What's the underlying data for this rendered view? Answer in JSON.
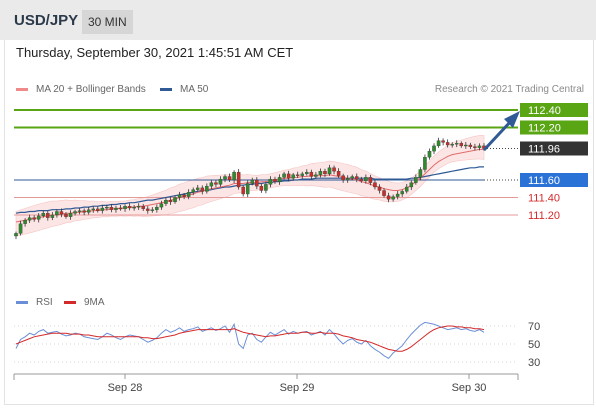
{
  "header": {
    "symbol": "USD/JPY",
    "timeframe": "30 MIN"
  },
  "date_text": "Thursday, September 30, 2021 1:45:51 AM CET",
  "legend": {
    "ma20_label": "MA 20 + Bollinger Bands",
    "ma50_label": "MA 50",
    "credit": "Research © 2021 Trading Central"
  },
  "rsi_legend": {
    "rsi_label": "RSI",
    "ma_label": "9MA"
  },
  "colors": {
    "resistance": "#5aa514",
    "support": "#d42a2a",
    "ma50": "#2f5a96",
    "ma20": "#e26b6b",
    "band_fill": "#fbdcdc",
    "rsi": "#6b8fd6",
    "current": "#333333",
    "arrow": "#2f5a96"
  },
  "chart_data": [
    {
      "type": "candlestick",
      "title": "USD/JPY 30 MIN",
      "x_labels": [
        "Sep 28",
        "Sep 29",
        "Sep 30"
      ],
      "ylim": [
        110.95,
        112.55
      ],
      "levels": [
        {
          "label": "112.40",
          "value": 112.4,
          "kind": "resistance"
        },
        {
          "label": "112.20",
          "value": 112.2,
          "kind": "resistance"
        },
        {
          "label": "111.96",
          "value": 111.96,
          "kind": "current"
        },
        {
          "label": "111.60",
          "value": 111.6,
          "kind": "pivot"
        },
        {
          "label": "111.40",
          "value": 111.4,
          "kind": "support"
        },
        {
          "label": "111.20",
          "value": 111.2,
          "kind": "support"
        }
      ],
      "close_series": [
        110.99,
        111.1,
        111.14,
        111.17,
        111.15,
        111.19,
        111.22,
        111.17,
        111.2,
        111.24,
        111.21,
        111.18,
        111.22,
        111.24,
        111.25,
        111.23,
        111.26,
        111.27,
        111.25,
        111.28,
        111.29,
        111.26,
        111.28,
        111.27,
        111.3,
        111.28,
        111.29,
        111.3,
        111.27,
        111.25,
        111.26,
        111.29,
        111.33,
        111.37,
        111.35,
        111.4,
        111.43,
        111.41,
        111.46,
        111.49,
        111.51,
        111.47,
        111.53,
        111.57,
        111.55,
        111.61,
        111.64,
        111.6,
        111.69,
        111.52,
        111.44,
        111.56,
        111.6,
        111.53,
        111.48,
        111.55,
        111.61,
        111.58,
        111.63,
        111.67,
        111.62,
        111.66,
        111.65,
        111.67,
        111.69,
        111.64,
        111.66,
        111.7,
        111.67,
        111.74,
        111.7,
        111.65,
        111.6,
        111.62,
        111.64,
        111.61,
        111.59,
        111.63,
        111.57,
        111.52,
        111.48,
        111.42,
        111.38,
        111.41,
        111.44,
        111.47,
        111.52,
        111.57,
        111.63,
        111.72,
        111.86,
        111.93,
        111.99,
        112.05,
        112.03,
        112.0,
        112.01,
        112.02,
        111.99,
        112.0,
        111.98,
        111.97,
        111.99,
        111.96
      ],
      "ma20_series": [
        111.12,
        111.13,
        111.14,
        111.15,
        111.16,
        111.17,
        111.18,
        111.19,
        111.2,
        111.2,
        111.21,
        111.22,
        111.22,
        111.23,
        111.23,
        111.24,
        111.24,
        111.25,
        111.25,
        111.26,
        111.26,
        111.27,
        111.27,
        111.28,
        111.28,
        111.29,
        111.29,
        111.3,
        111.3,
        111.31,
        111.32,
        111.33,
        111.34,
        111.35,
        111.37,
        111.38,
        111.4,
        111.41,
        111.43,
        111.44,
        111.46,
        111.47,
        111.49,
        111.5,
        111.51,
        111.52,
        111.53,
        111.54,
        111.56,
        111.56,
        111.56,
        111.57,
        111.57,
        111.57,
        111.58,
        111.58,
        111.59,
        111.6,
        111.61,
        111.62,
        111.62,
        111.63,
        111.63,
        111.64,
        111.64,
        111.65,
        111.65,
        111.65,
        111.65,
        111.66,
        111.65,
        111.64,
        111.63,
        111.62,
        111.61,
        111.6,
        111.58,
        111.57,
        111.55,
        111.53,
        111.52,
        111.5,
        111.49,
        111.48,
        111.48,
        111.49,
        111.51,
        111.54,
        111.58,
        111.62,
        111.67,
        111.72,
        111.77,
        111.81,
        111.84,
        111.87,
        111.89,
        111.9,
        111.91,
        111.92,
        111.93,
        111.94,
        111.95,
        111.95
      ],
      "ma50_series": [
        111.22,
        111.23,
        111.23,
        111.24,
        111.24,
        111.25,
        111.25,
        111.25,
        111.26,
        111.26,
        111.26,
        111.27,
        111.27,
        111.28,
        111.28,
        111.29,
        111.29,
        111.3,
        111.3,
        111.31,
        111.31,
        111.32,
        111.32,
        111.33,
        111.33,
        111.34,
        111.34,
        111.35,
        111.36,
        111.37,
        111.37,
        111.38,
        111.39,
        111.4,
        111.41,
        111.42,
        111.43,
        111.44,
        111.45,
        111.46,
        111.47,
        111.48,
        111.48,
        111.49,
        111.5,
        111.51,
        111.52,
        111.52,
        111.53,
        111.54,
        111.54,
        111.55,
        111.55,
        111.56,
        111.56,
        111.57,
        111.57,
        111.58,
        111.58,
        111.59,
        111.59,
        111.6,
        111.6,
        111.61,
        111.61,
        111.61,
        111.62,
        111.62,
        111.62,
        111.62,
        111.62,
        111.62,
        111.62,
        111.62,
        111.62,
        111.62,
        111.62,
        111.62,
        111.62,
        111.61,
        111.61,
        111.61,
        111.61,
        111.61,
        111.61,
        111.61,
        111.61,
        111.62,
        111.62,
        111.63,
        111.64,
        111.65,
        111.66,
        111.67,
        111.68,
        111.69,
        111.7,
        111.71,
        111.72,
        111.73,
        111.74,
        111.74,
        111.75,
        111.75
      ],
      "band_width": 0.12
    },
    {
      "type": "line",
      "title": "RSI",
      "yticks": [
        70,
        50,
        30
      ],
      "ylim": [
        25,
        80
      ],
      "series": [
        {
          "name": "RSI",
          "values": [
            45,
            55,
            58,
            62,
            60,
            64,
            66,
            62,
            63,
            64,
            61,
            59,
            60,
            62,
            61,
            58,
            57,
            56,
            55,
            58,
            62,
            60,
            57,
            55,
            58,
            60,
            59,
            58,
            55,
            52,
            54,
            57,
            62,
            66,
            63,
            65,
            68,
            64,
            66,
            67,
            69,
            64,
            66,
            68,
            65,
            67,
            70,
            63,
            72,
            50,
            45,
            60,
            62,
            55,
            52,
            58,
            63,
            60,
            63,
            66,
            61,
            64,
            62,
            63,
            64,
            60,
            62,
            64,
            60,
            66,
            61,
            55,
            50,
            54,
            56,
            52,
            50,
            54,
            48,
            44,
            41,
            37,
            34,
            40,
            44,
            48,
            55,
            61,
            66,
            71,
            74,
            73,
            72,
            70,
            68,
            66,
            67,
            68,
            66,
            67,
            65,
            64,
            66,
            63
          ]
        },
        {
          "name": "9MA",
          "values": [
            50,
            52,
            54,
            56,
            58,
            59,
            60,
            61,
            62,
            62,
            62,
            62,
            61,
            61,
            61,
            60,
            60,
            59,
            58,
            58,
            58,
            58,
            58,
            58,
            58,
            58,
            58,
            58,
            57,
            57,
            56,
            56,
            57,
            58,
            59,
            60,
            62,
            63,
            64,
            65,
            66,
            66,
            66,
            66,
            66,
            66,
            66,
            66,
            67,
            65,
            63,
            62,
            61,
            60,
            59,
            58,
            59,
            59,
            60,
            61,
            62,
            62,
            62,
            63,
            63,
            62,
            62,
            63,
            62,
            62,
            62,
            61,
            59,
            58,
            57,
            55,
            54,
            53,
            52,
            50,
            48,
            46,
            44,
            43,
            42,
            42,
            44,
            47,
            51,
            55,
            59,
            63,
            66,
            68,
            69,
            70,
            70,
            69,
            69,
            68,
            68,
            67,
            67,
            66
          ]
        }
      ]
    }
  ]
}
